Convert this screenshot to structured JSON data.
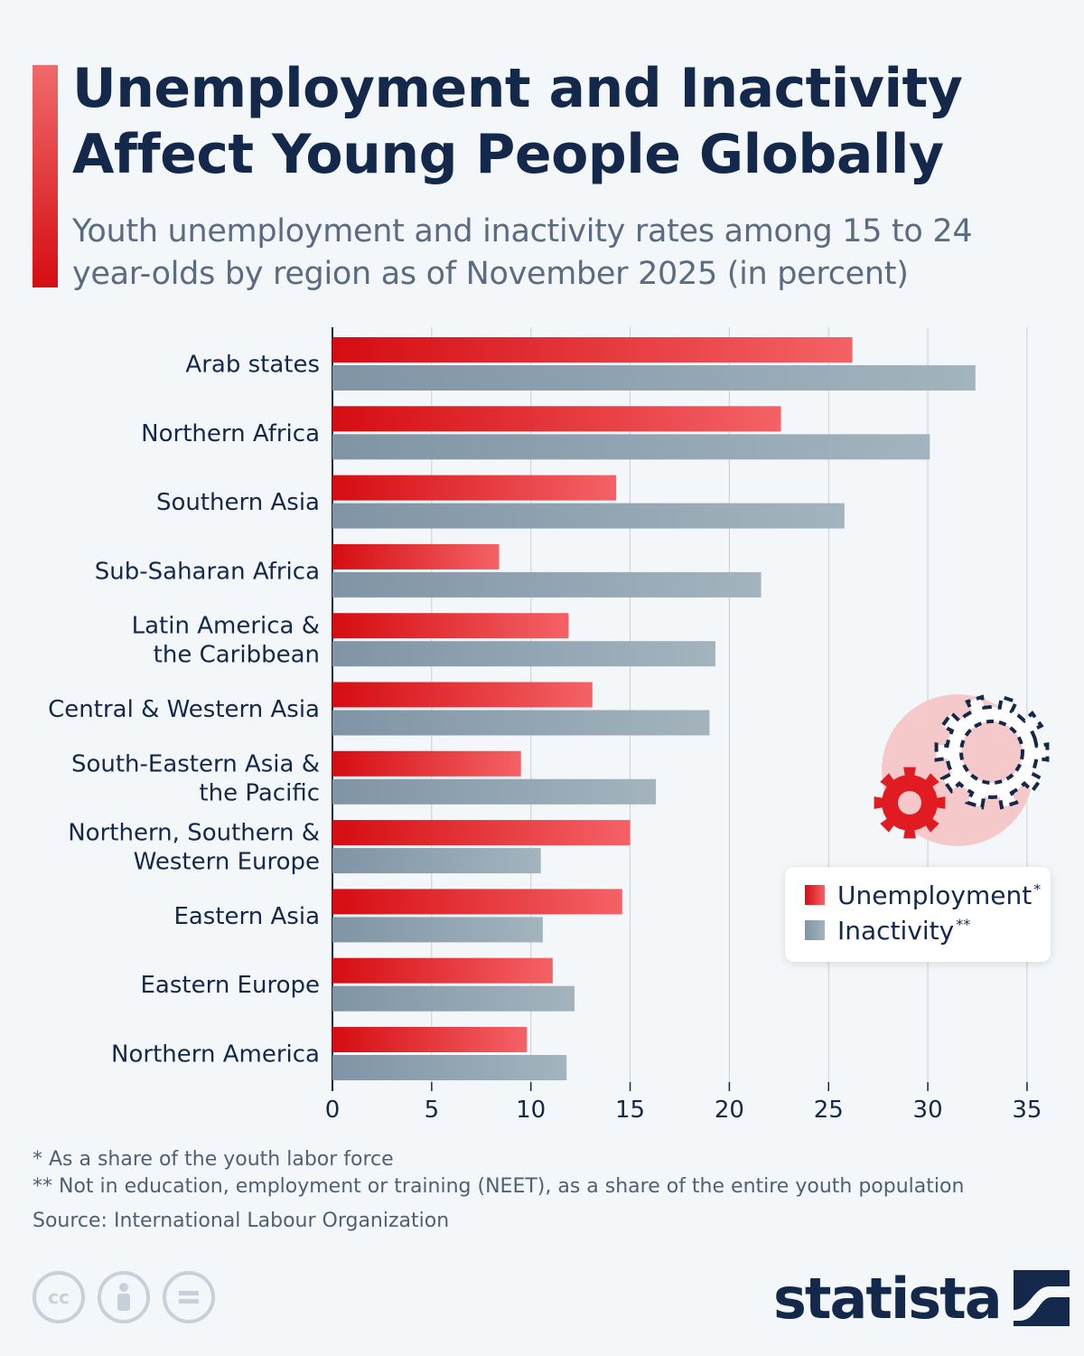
{
  "header": {
    "title": "Unemployment and Inactivity Affect Young People Globally",
    "subtitle": "Youth unemployment and inactivity rates among 15 to 24 year-olds by region as of November 2025 (in percent)"
  },
  "chart_data": {
    "type": "bar",
    "orientation": "horizontal",
    "categories": [
      [
        "Arab states"
      ],
      [
        "Northern Africa"
      ],
      [
        "Southern Asia"
      ],
      [
        "Sub-Saharan Africa"
      ],
      [
        "Latin America &",
        "the Caribbean"
      ],
      [
        "Central & Western Asia"
      ],
      [
        "South-Eastern Asia &",
        "the Pacific"
      ],
      [
        "Northern, Southern &",
        "Western Europe"
      ],
      [
        "Eastern Asia"
      ],
      [
        "Eastern Europe"
      ],
      [
        "Northern America"
      ]
    ],
    "series": [
      {
        "name": "Unemployment",
        "values": [
          26.2,
          22.6,
          14.3,
          8.4,
          11.9,
          13.1,
          9.5,
          15.0,
          14.6,
          11.1,
          9.8
        ]
      },
      {
        "name": "Inactivity",
        "values": [
          32.4,
          30.1,
          25.8,
          21.6,
          19.3,
          19.0,
          16.3,
          10.5,
          10.6,
          12.2,
          11.8
        ]
      }
    ],
    "x_ticks": [
      "0",
      "5",
      "10",
      "15",
      "20",
      "25",
      "30",
      "35"
    ],
    "xlim": [
      0,
      35
    ],
    "grid": true,
    "legend_position": "bottom-right",
    "colors": {
      "unemployment_start": "#d50d12",
      "unemployment_end": "#f46266",
      "inactivity_start": "#7f94a5",
      "inactivity_end": "#a3b4be",
      "grid": "#c8ced6",
      "axis": "#13284a"
    }
  },
  "legend": {
    "items": [
      {
        "label": "Unemployment",
        "sup": "*"
      },
      {
        "label": "Inactivity",
        "sup": "**"
      }
    ]
  },
  "footnotes": {
    "note1": "*   As a share of the youth labor force",
    "note2": "** Not in education, employment or training (NEET), as a share of the entire youth population",
    "source": "Source: International Labour Organization"
  },
  "license_icons": [
    "cc-icon",
    "attribution-icon",
    "no-derivatives-icon"
  ],
  "brand": {
    "name": "statista"
  }
}
